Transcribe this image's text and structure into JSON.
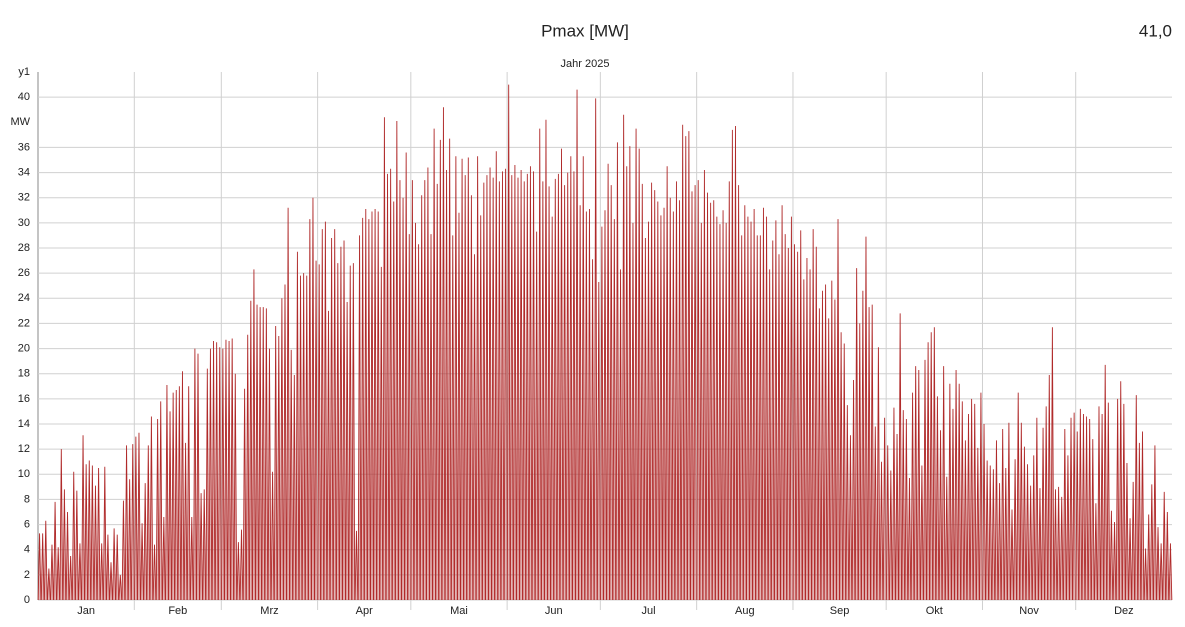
{
  "chart_data": {
    "type": "spike",
    "title": "Pmax [MW]",
    "max_label": "41,0",
    "subtitle": "Jahr 2025",
    "y_axis_name": "y1",
    "y_unit": "MW",
    "color": "#b02a2a",
    "grid": true,
    "ylim": [
      0,
      42
    ],
    "yticks": [
      0,
      2,
      4,
      6,
      8,
      10,
      12,
      14,
      16,
      18,
      20,
      22,
      24,
      26,
      28,
      30,
      32,
      34,
      36,
      40
    ],
    "categories": [
      "Jan",
      "Feb",
      "Mrz",
      "Apr",
      "Mai",
      "Jun",
      "Jul",
      "Aug",
      "Sep",
      "Okt",
      "Nov",
      "Dez"
    ],
    "values": [
      [
        5.3,
        5.3,
        6.3,
        2.5,
        4.4,
        7.8,
        4.2,
        12.0,
        8.8,
        7.0,
        3.5,
        10.2,
        8.7,
        4.5,
        13.1,
        10.8,
        11.1,
        10.7,
        9.1,
        10.5,
        4.5,
        10.6,
        5.2,
        3.0,
        5.7,
        5.2,
        2.0,
        7.9,
        12.3,
        9.6,
        12.4
      ],
      [
        13.0,
        13.3,
        6.1,
        9.3,
        12.3,
        14.6,
        4.4,
        14.4,
        15.8,
        6.6,
        17.1,
        15.0,
        16.5,
        16.7,
        17.0,
        18.2,
        12.5,
        17.0,
        6.6,
        20.0,
        19.6,
        8.5,
        8.8,
        18.4,
        20.0,
        20.6,
        20.5,
        20.1
      ],
      [
        20.0,
        20.7,
        20.6,
        20.8,
        18.0,
        4.6,
        5.6,
        16.8,
        21.1,
        23.8,
        26.3,
        23.5,
        23.3,
        23.3,
        23.2,
        20.0,
        10.2,
        21.8,
        21.0,
        24.0,
        25.1,
        31.2,
        19.9,
        17.9,
        27.7,
        25.8,
        26.0,
        25.8,
        30.3,
        32.0,
        27.0
      ],
      [
        26.7,
        29.5,
        30.1,
        23.0,
        28.8,
        29.5,
        26.8,
        28.1,
        28.6,
        23.7,
        26.6,
        26.8,
        5.5,
        29.0,
        30.4,
        31.1,
        30.3,
        30.9,
        31.1,
        30.9,
        26.5,
        38.4,
        33.9,
        34.3,
        31.7,
        38.1,
        33.4,
        32.0,
        35.6,
        29.1
      ],
      [
        33.4,
        30.0,
        28.3,
        32.2,
        33.4,
        34.4,
        29.1,
        37.5,
        33.1,
        36.6,
        39.2,
        34.2,
        36.7,
        29.0,
        35.3,
        30.8,
        35.1,
        33.8,
        35.2,
        32.2,
        27.5,
        35.3,
        30.6,
        33.2,
        33.8,
        34.4,
        33.6,
        35.7,
        33.3,
        34.1,
        34.3
      ],
      [
        41.0,
        33.8,
        34.6,
        33.6,
        34.2,
        33.3,
        33.9,
        34.5,
        34.1,
        29.3,
        37.5,
        33.3,
        38.2,
        32.9,
        30.5,
        33.5,
        33.9,
        35.9,
        33.0,
        34.0,
        35.3,
        34.1,
        40.6,
        31.4,
        35.3,
        30.9,
        31.1,
        27.1,
        39.9,
        25.3
      ],
      [
        29.7,
        31.0,
        34.7,
        33.0,
        30.3,
        36.4,
        26.3,
        38.6,
        34.5,
        36.1,
        30.0,
        37.5,
        35.9,
        33.1,
        28.8,
        30.1,
        33.2,
        32.6,
        31.7,
        30.6,
        31.2,
        34.5,
        32.0,
        30.9,
        33.3,
        31.8,
        37.8,
        36.9,
        37.3,
        32.5,
        33.0
      ],
      [
        33.4,
        30.0,
        34.2,
        32.4,
        31.6,
        31.8,
        30.5,
        29.9,
        31.0,
        30.0,
        33.3,
        37.4,
        37.7,
        33.0,
        29.0,
        31.4,
        30.5,
        30.1,
        31.1,
        29.0,
        29.0,
        31.2,
        30.5,
        26.3,
        28.6,
        30.2,
        27.5,
        31.4,
        29.1,
        28.0,
        30.5
      ],
      [
        28.3,
        27.7,
        29.4,
        25.5,
        27.2,
        26.3,
        29.5,
        28.1,
        23.2,
        24.6,
        25.1,
        22.4,
        25.4,
        23.9,
        30.3,
        21.3,
        20.4,
        15.5,
        13.1,
        17.5,
        26.4,
        22.0,
        24.6,
        28.9,
        23.3,
        23.5,
        13.8,
        20.1,
        11.0,
        14.5
      ],
      [
        12.3,
        10.3,
        15.3,
        13.2,
        22.8,
        15.1,
        14.4,
        9.7,
        16.5,
        18.6,
        18.3,
        10.7,
        19.1,
        20.5,
        21.3,
        21.7,
        16.2,
        13.5,
        18.6,
        9.8,
        17.2,
        15.2,
        18.3,
        17.2,
        15.8,
        12.7,
        14.8,
        16.0,
        15.6,
        12.1,
        16.5
      ],
      [
        14.0,
        11.1,
        10.7,
        10.4,
        12.7,
        9.3,
        13.6,
        10.5,
        14.1,
        7.2,
        11.2,
        16.5,
        14.1,
        12.2,
        10.8,
        9.1,
        11.5,
        14.5,
        8.9,
        13.7,
        15.4,
        17.9,
        21.7,
        8.8,
        9.0,
        8.2,
        13.6,
        11.5,
        14.5,
        14.9
      ],
      [
        13.4,
        15.2,
        14.8,
        14.6,
        14.4,
        12.8,
        7.7,
        15.4,
        14.8,
        18.7,
        15.7,
        7.1,
        6.2,
        16.0,
        17.4,
        15.6,
        10.9,
        6.5,
        9.4,
        16.3,
        12.5,
        13.4,
        4.1,
        6.8,
        9.2,
        12.3,
        5.8,
        4.5,
        8.6,
        7.0,
        4.5
      ]
    ]
  }
}
